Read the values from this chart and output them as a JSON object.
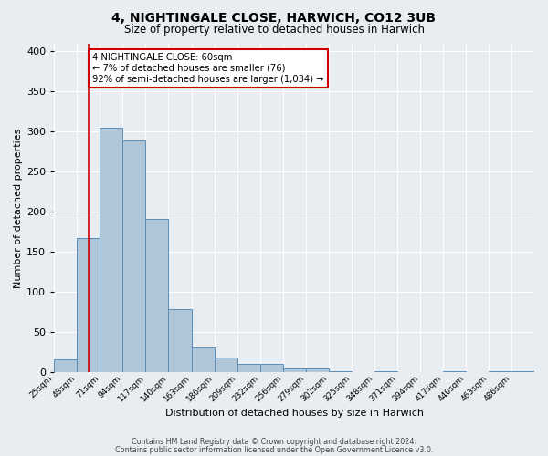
{
  "title": "4, NIGHTINGALE CLOSE, HARWICH, CO12 3UB",
  "subtitle": "Size of property relative to detached houses in Harwich",
  "xlabel": "Distribution of detached houses by size in Harwich",
  "ylabel": "Number of detached properties",
  "bin_labels": [
    "25sqm",
    "48sqm",
    "71sqm",
    "94sqm",
    "117sqm",
    "140sqm",
    "163sqm",
    "186sqm",
    "209sqm",
    "232sqm",
    "256sqm",
    "279sqm",
    "302sqm",
    "325sqm",
    "348sqm",
    "371sqm",
    "394sqm",
    "417sqm",
    "440sqm",
    "463sqm",
    "486sqm"
  ],
  "bar_heights": [
    16,
    168,
    305,
    289,
    191,
    79,
    31,
    19,
    11,
    11,
    5,
    5,
    2,
    0,
    2,
    0,
    0,
    2,
    0,
    2,
    2
  ],
  "bar_color": "#aec6d8",
  "bar_edge_color": "#5b8db8",
  "background_color": "#e8edf2",
  "plot_bg_color": "#e8edf2",
  "grid_color": "#ffffff",
  "ylim": [
    0,
    410
  ],
  "yticks": [
    0,
    50,
    100,
    150,
    200,
    250,
    300,
    350,
    400
  ],
  "marker_color": "#cc0000",
  "annotation_title": "4 NIGHTINGALE CLOSE: 60sqm",
  "annotation_line1": "← 7% of detached houses are smaller (76)",
  "annotation_line2": "92% of semi-detached houses are larger (1,034) →",
  "annotation_box_color": "#ffffff",
  "annotation_box_edge": "#cc0000",
  "footer_line1": "Contains HM Land Registry data © Crown copyright and database right 2024.",
  "footer_line2": "Contains public sector information licensed under the Open Government Licence v3.0."
}
